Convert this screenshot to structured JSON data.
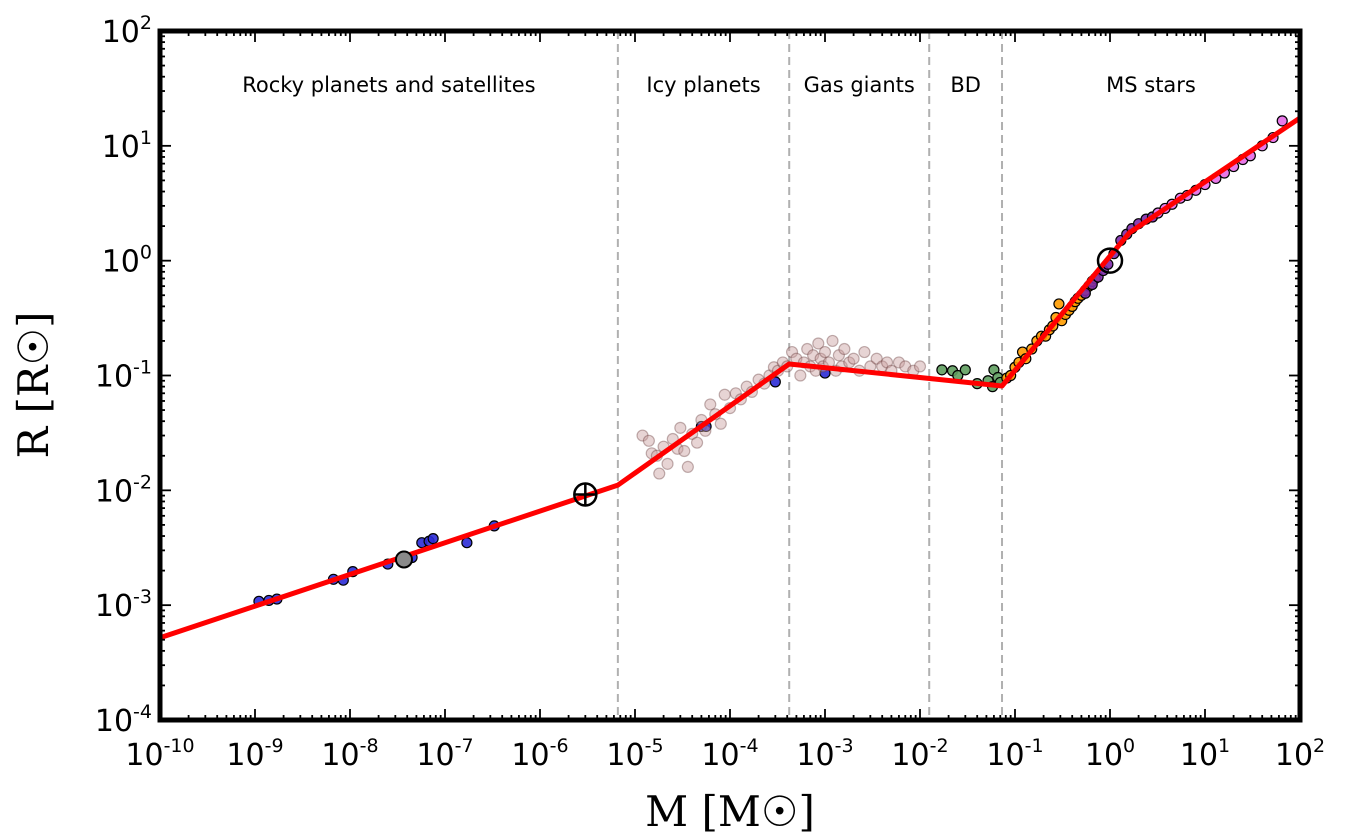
{
  "chart_data": {
    "type": "scatter",
    "title": "",
    "xlabel": "M [M☉]",
    "ylabel": "R [R☉]",
    "x_scale": "log",
    "y_scale": "log",
    "xlim": [
      1e-10,
      100
    ],
    "ylim": [
      0.0001,
      100
    ],
    "grid": false,
    "x_tick_labels": [
      {
        "base": "10",
        "exp": "-10",
        "value": 1e-10
      },
      {
        "base": "10",
        "exp": "-9",
        "value": 1e-09
      },
      {
        "base": "10",
        "exp": "-8",
        "value": 1e-08
      },
      {
        "base": "10",
        "exp": "-7",
        "value": 1e-07
      },
      {
        "base": "10",
        "exp": "-6",
        "value": 1e-06
      },
      {
        "base": "10",
        "exp": "-5",
        "value": 1e-05
      },
      {
        "base": "10",
        "exp": "-4",
        "value": 0.0001
      },
      {
        "base": "10",
        "exp": "-3",
        "value": 0.001
      },
      {
        "base": "10",
        "exp": "-2",
        "value": 0.01
      },
      {
        "base": "10",
        "exp": "-1",
        "value": 0.1
      },
      {
        "base": "10",
        "exp": "0",
        "value": 1
      },
      {
        "base": "10",
        "exp": "1",
        "value": 10
      },
      {
        "base": "10",
        "exp": "2",
        "value": 100
      }
    ],
    "y_tick_labels": [
      {
        "base": "10",
        "exp": "-4",
        "value": 0.0001
      },
      {
        "base": "10",
        "exp": "-3",
        "value": 0.001
      },
      {
        "base": "10",
        "exp": "-2",
        "value": 0.01
      },
      {
        "base": "10",
        "exp": "-1",
        "value": 0.1
      },
      {
        "base": "10",
        "exp": "0",
        "value": 1
      },
      {
        "base": "10",
        "exp": "1",
        "value": 10
      },
      {
        "base": "10",
        "exp": "2",
        "value": 100
      }
    ],
    "regions": [
      {
        "label": "Rocky planets and satellites",
        "x_from": 1e-10,
        "x_to": 6.6e-06
      },
      {
        "label": "Icy planets",
        "x_from": 6.6e-06,
        "x_to": 0.00042
      },
      {
        "label": "Gas giants",
        "x_from": 0.00042,
        "x_to": 0.0125
      },
      {
        "label": "BD",
        "x_from": 0.0125,
        "x_to": 0.073
      },
      {
        "label": "MS stars",
        "x_from": 0.073,
        "x_to": 100
      }
    ],
    "boundaries": [
      6.6e-06,
      0.00042,
      0.0125,
      0.073
    ],
    "colors": {
      "fit": "#ff0000",
      "rocky": "#2b2bd6",
      "icy": "#2b2bd6",
      "exoplanet": "#c9a0a0",
      "brown_dwarf": "#5f9e5f",
      "m_dwarf": "#ff9c00",
      "ms_star": "#7d2aa8",
      "massive_star": "#e66ae6",
      "boundary": "#b0b0b0"
    },
    "fit_line": {
      "x": [
        1e-10,
        6.6e-06,
        0.00042,
        0.073,
        1.6,
        100
      ],
      "y": [
        0.00052,
        0.0111,
        0.126,
        0.081,
        1.75,
        17.5
      ]
    },
    "series": [
      {
        "group": "rocky",
        "points": [
          [
            1.1e-09,
            0.00108
          ],
          [
            1.4e-09,
            0.0011
          ],
          [
            1.7e-09,
            0.00113
          ],
          [
            6.7e-09,
            0.00168
          ],
          [
            8.5e-09,
            0.00165
          ],
          [
            1.07e-08,
            0.00196
          ],
          [
            2.5e-08,
            0.00228
          ],
          [
            4e-08,
            0.0025
          ],
          [
            4.5e-08,
            0.0026
          ],
          [
            5.7e-08,
            0.0035
          ],
          [
            6.8e-08,
            0.0036
          ],
          [
            7.5e-08,
            0.0038
          ],
          [
            1.7e-07,
            0.0035
          ],
          [
            3.3e-07,
            0.0049
          ]
        ]
      },
      {
        "group": "icy",
        "points": [
          [
            5e-05,
            0.036
          ],
          [
            5.6e-05,
            0.036
          ],
          [
            0.0003,
            0.088
          ],
          [
            0.001,
            0.105
          ]
        ]
      },
      {
        "group": "exoplanet",
        "points": [
          [
            1.2e-05,
            0.03
          ],
          [
            1.4e-05,
            0.027
          ],
          [
            1.5e-05,
            0.021
          ],
          [
            1.7e-05,
            0.02
          ],
          [
            1.8e-05,
            0.014
          ],
          [
            2e-05,
            0.024
          ],
          [
            2.2e-05,
            0.017
          ],
          [
            2.5e-05,
            0.028
          ],
          [
            2.8e-05,
            0.023
          ],
          [
            3e-05,
            0.035
          ],
          [
            3.3e-05,
            0.022
          ],
          [
            3.6e-05,
            0.016
          ],
          [
            4e-05,
            0.031
          ],
          [
            4.5e-05,
            0.026
          ],
          [
            5e-05,
            0.041
          ],
          [
            5.5e-05,
            0.033
          ],
          [
            6.2e-05,
            0.056
          ],
          [
            7e-05,
            0.046
          ],
          [
            8e-05,
            0.038
          ],
          [
            8.8e-05,
            0.068
          ],
          [
            0.0001,
            0.052
          ],
          [
            0.000115,
            0.07
          ],
          [
            0.00013,
            0.062
          ],
          [
            0.00015,
            0.08
          ],
          [
            0.00017,
            0.072
          ],
          [
            0.0002,
            0.092
          ],
          [
            0.00023,
            0.085
          ],
          [
            0.00026,
            0.1
          ],
          [
            0.00029,
            0.118
          ],
          [
            0.00032,
            0.11
          ],
          [
            0.00036,
            0.13
          ],
          [
            0.0004,
            0.12
          ],
          [
            0.00045,
            0.16
          ],
          [
            0.0005,
            0.14
          ],
          [
            0.00055,
            0.1
          ],
          [
            0.0006,
            0.13
          ],
          [
            0.00065,
            0.17
          ],
          [
            0.0007,
            0.12
          ],
          [
            0.00075,
            0.15
          ],
          [
            0.0008,
            0.11
          ],
          [
            0.00085,
            0.19
          ],
          [
            0.0009,
            0.14
          ],
          [
            0.00095,
            0.12
          ],
          [
            0.001,
            0.16
          ],
          [
            0.0011,
            0.13
          ],
          [
            0.0012,
            0.2
          ],
          [
            0.0013,
            0.11
          ],
          [
            0.0014,
            0.15
          ],
          [
            0.0015,
            0.12
          ],
          [
            0.0016,
            0.17
          ],
          [
            0.0018,
            0.13
          ],
          [
            0.002,
            0.14
          ],
          [
            0.0023,
            0.11
          ],
          [
            0.0026,
            0.16
          ],
          [
            0.003,
            0.12
          ],
          [
            0.0035,
            0.14
          ],
          [
            0.004,
            0.12
          ],
          [
            0.0045,
            0.13
          ],
          [
            0.005,
            0.11
          ],
          [
            0.006,
            0.13
          ],
          [
            0.007,
            0.12
          ],
          [
            0.0085,
            0.11
          ],
          [
            0.01,
            0.12
          ]
        ]
      },
      {
        "group": "brown_dwarf",
        "points": [
          [
            0.017,
            0.112
          ],
          [
            0.022,
            0.11
          ],
          [
            0.025,
            0.1
          ],
          [
            0.03,
            0.112
          ],
          [
            0.04,
            0.085
          ],
          [
            0.052,
            0.09
          ],
          [
            0.058,
            0.08
          ],
          [
            0.06,
            0.112
          ],
          [
            0.066,
            0.096
          ],
          [
            0.07,
            0.087
          ]
        ]
      },
      {
        "group": "m_dwarf",
        "points": [
          [
            0.082,
            0.095
          ],
          [
            0.09,
            0.1
          ],
          [
            0.1,
            0.118
          ],
          [
            0.11,
            0.13
          ],
          [
            0.12,
            0.16
          ],
          [
            0.13,
            0.14
          ],
          [
            0.15,
            0.17
          ],
          [
            0.17,
            0.2
          ],
          [
            0.19,
            0.22
          ],
          [
            0.21,
            0.22
          ],
          [
            0.23,
            0.25
          ],
          [
            0.25,
            0.27
          ],
          [
            0.27,
            0.32
          ],
          [
            0.29,
            0.42
          ],
          [
            0.31,
            0.3
          ],
          [
            0.34,
            0.34
          ],
          [
            0.37,
            0.37
          ],
          [
            0.4,
            0.4
          ],
          [
            0.43,
            0.44
          ],
          [
            0.46,
            0.47
          ],
          [
            0.5,
            0.5
          ],
          [
            0.55,
            0.55
          ],
          [
            0.6,
            0.6
          ],
          [
            0.65,
            0.66
          ],
          [
            0.7,
            0.7
          ]
        ]
      },
      {
        "group": "ms_star",
        "points": [
          [
            0.55,
            0.52
          ],
          [
            0.65,
            0.62
          ],
          [
            0.75,
            0.72
          ],
          [
            0.85,
            0.82
          ],
          [
            0.95,
            0.93
          ],
          [
            1.1,
            1.15
          ],
          [
            1.3,
            1.5
          ],
          [
            1.5,
            1.7
          ],
          [
            1.7,
            1.9
          ],
          [
            2.0,
            2.1
          ],
          [
            2.4,
            2.3
          ],
          [
            2.8,
            2.4
          ]
        ]
      },
      {
        "group": "massive_star",
        "points": [
          [
            3.2,
            2.6
          ],
          [
            3.8,
            2.85
          ],
          [
            4.5,
            3.1
          ],
          [
            5.5,
            3.5
          ],
          [
            6.5,
            3.7
          ],
          [
            8.0,
            4.1
          ],
          [
            10.0,
            4.6
          ],
          [
            13.0,
            5.2
          ],
          [
            16.0,
            5.8
          ],
          [
            20.0,
            6.6
          ],
          [
            25.0,
            7.6
          ],
          [
            30.0,
            8.2
          ],
          [
            40.0,
            10.0
          ],
          [
            52.0,
            11.8
          ],
          [
            65.0,
            16.5
          ]
        ]
      }
    ],
    "reference_points": [
      {
        "name": "earth",
        "x": 3e-06,
        "y": 0.0092,
        "symbol": "⊕"
      },
      {
        "name": "sun",
        "x": 1.0,
        "y": 1.0,
        "symbol": "circle"
      },
      {
        "name": "moon",
        "x": 3.7e-08,
        "y": 0.0025,
        "symbol": "circle"
      }
    ]
  }
}
